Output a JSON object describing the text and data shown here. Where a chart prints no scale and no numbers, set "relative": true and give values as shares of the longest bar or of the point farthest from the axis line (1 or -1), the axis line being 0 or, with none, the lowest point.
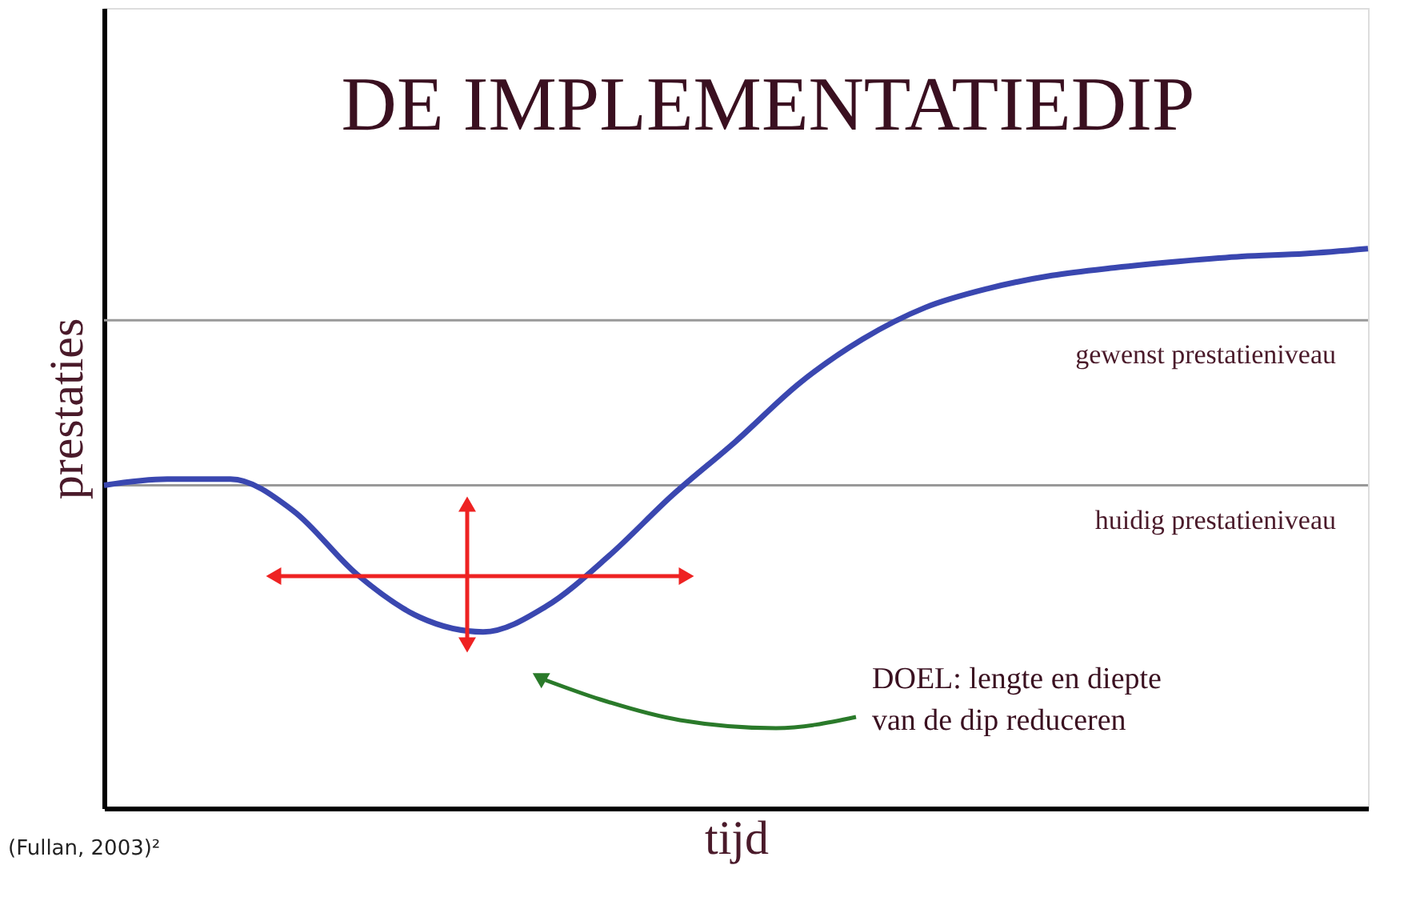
{
  "chart_data": {
    "type": "line",
    "title": "DE IMPLEMENTATIEDIP",
    "xlabel": "tijd",
    "ylabel": "prestaties",
    "relative": true,
    "categories": [
      null,
      null,
      null,
      null,
      null,
      null,
      null,
      null,
      null,
      null,
      null,
      null,
      null,
      null,
      null,
      null,
      null,
      null,
      null,
      null,
      null
    ],
    "series": [
      {
        "color": "#3a47b0",
        "values": [
          0.577,
          0.588,
          0.588,
          0.531,
          0.418,
          0.341,
          0.315,
          0.361,
          0.452,
          0.56,
          0.656,
          0.759,
          0.838,
          0.895,
          0.929,
          0.952,
          0.966,
          0.977,
          0.986,
          0.991,
          1.0
        ]
      }
    ],
    "ref_lines": [
      {
        "axis": "y",
        "value": 0.872,
        "label": "gewenst prestatieniveau",
        "color": "#999999"
      },
      {
        "axis": "y",
        "value": 0.577,
        "label": "huidig prestatieniveau",
        "color": "#999999"
      }
    ],
    "annotations": [
      "DOEL: lengte en diepte\nvan de dip reduceren",
      "(Fullan, 2003)²"
    ],
    "marker": "none",
    "line_style": "solid",
    "grid": false
  }
}
